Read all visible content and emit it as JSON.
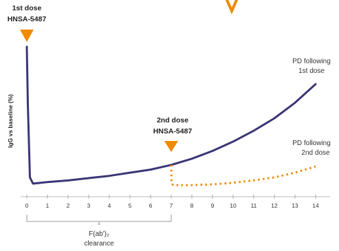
{
  "chart_data": {
    "type": "line",
    "ylabel": "IgG vs baseline (%)",
    "xlabel": "",
    "xlim": [
      0,
      14
    ],
    "x_ticks": [
      0,
      1,
      2,
      3,
      4,
      5,
      6,
      7,
      8,
      9,
      10,
      11,
      12,
      13,
      14
    ],
    "grid": false,
    "doses": [
      {
        "line1": "1st dose",
        "line2": "HNSA-5487",
        "x": 0
      },
      {
        "line1": "2nd dose",
        "line2": "HNSA-5487",
        "x": 7
      }
    ],
    "series": [
      {
        "name": "PD following 1st dose",
        "label_line1": "PD following",
        "label_line2": "1st dose",
        "style": "solid",
        "color": "#3a3677",
        "x": [
          0,
          0.05,
          0.15,
          0.3,
          1,
          2,
          3,
          4,
          5,
          6,
          7,
          8,
          9,
          10,
          11,
          12,
          13,
          14
        ],
        "y": [
          92,
          55,
          8,
          4,
          5,
          6,
          7.5,
          9,
          11,
          13,
          16,
          20,
          25,
          31,
          38,
          46,
          56,
          68
        ]
      },
      {
        "name": "PD following 2nd dose",
        "label_line1": "PD following",
        "label_line2": "2nd dose",
        "style": "dotted",
        "color": "#f08a00",
        "x": [
          7,
          7.02,
          7.1,
          8,
          9,
          10,
          11,
          12,
          13,
          14
        ],
        "y": [
          16,
          4,
          3,
          3,
          3.5,
          4.5,
          6,
          8,
          11,
          15
        ]
      }
    ],
    "bracket": {
      "from": 0,
      "to": 7,
      "label_line1": "F(ab')₂",
      "label_line2": "clearance"
    }
  }
}
